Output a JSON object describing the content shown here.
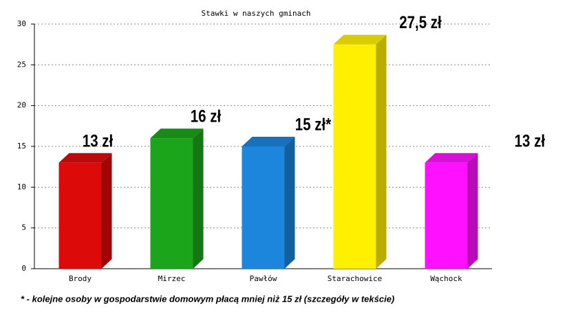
{
  "chart_data": {
    "type": "bar3d",
    "title": "Stawki w naszych gminach",
    "categories": [
      "Brody",
      "Mirzec",
      "Pawłów",
      "Starachowice",
      "Wąchock"
    ],
    "values": [
      13,
      16,
      15,
      27.5,
      13
    ],
    "value_labels": [
      "13 zł",
      "16 zł",
      "15 zł*",
      "27,5 zł",
      "13 zł"
    ],
    "colors": [
      "#dd0a0a",
      "#1aa51a",
      "#1b86dc",
      "#fff000",
      "#ff10ff"
    ],
    "ylim": [
      0,
      30
    ],
    "yticks": [
      0,
      5,
      10,
      15,
      20,
      25,
      30
    ],
    "grid": true,
    "footnote": "* - kolejne osoby w gospodarstwie domowym płacą mniej niż 15 zł (szczegóły w tekście)"
  }
}
